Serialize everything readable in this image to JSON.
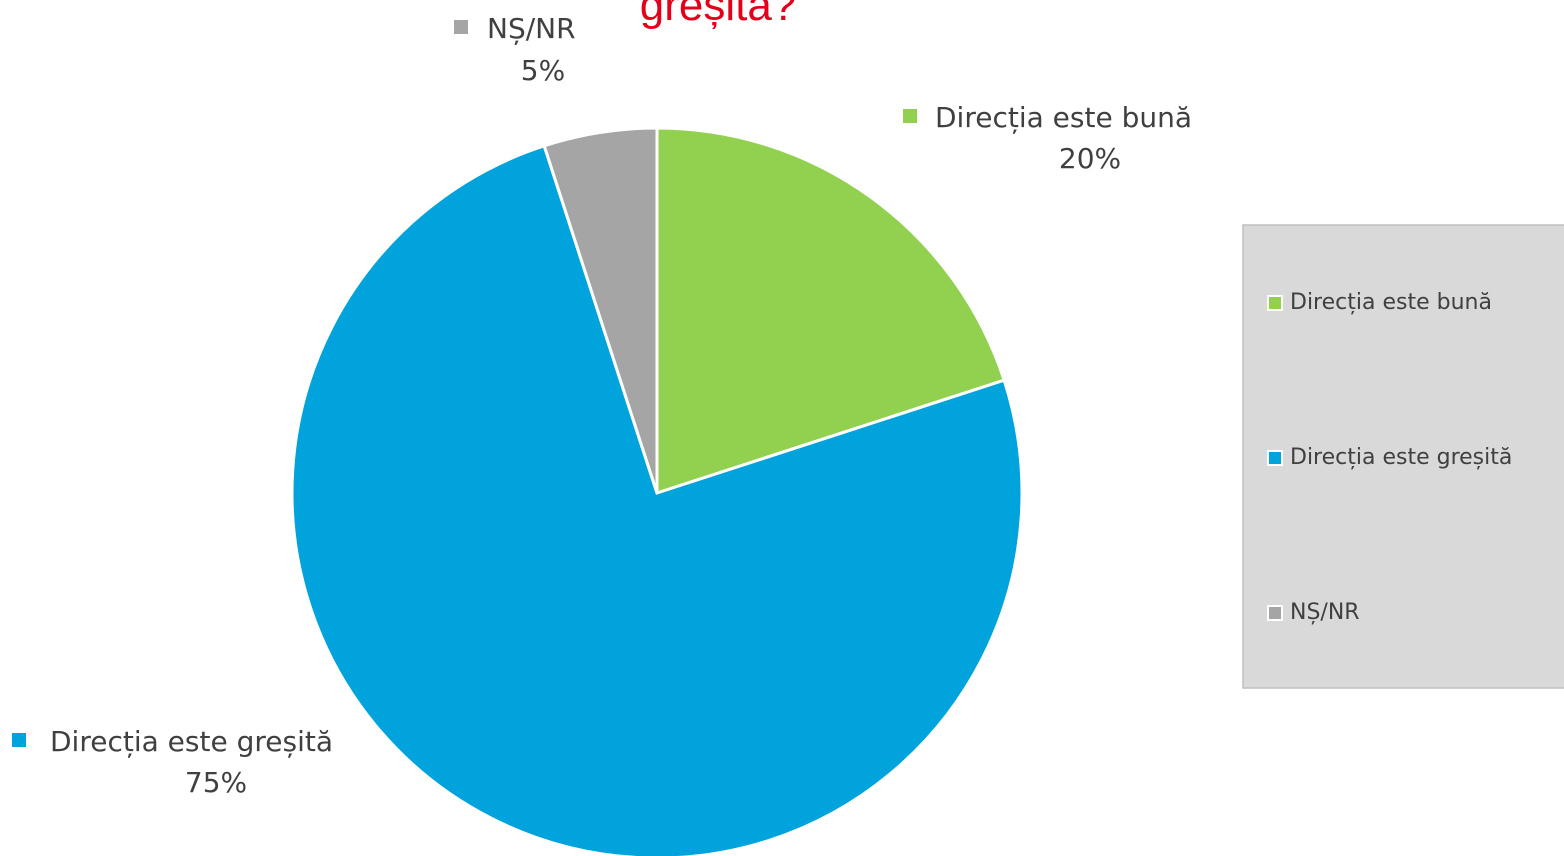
{
  "chart_data": {
    "type": "pie",
    "title": "greșită?",
    "categories": [
      "Direcția este bună",
      "Direcția este greșită",
      "NȘ/NR"
    ],
    "values": [
      20,
      75,
      5
    ],
    "value_labels": [
      "20%",
      "75%",
      "5%"
    ],
    "colors": [
      "#92d050",
      "#00a3dc",
      "#a5a5a5"
    ],
    "legend": "right"
  }
}
